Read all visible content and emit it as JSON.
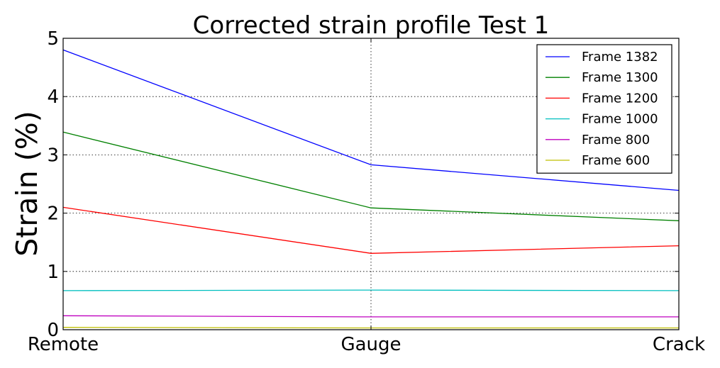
{
  "chart_data": {
    "type": "line",
    "title": "Corrected strain profile Test 1",
    "xlabel": "",
    "ylabel": "Strain (%)",
    "categories": [
      "Remote",
      "Gauge",
      "Crack"
    ],
    "ylim": [
      0,
      5
    ],
    "yticks": [
      "0",
      "1",
      "2",
      "3",
      "4",
      "5"
    ],
    "grid": true,
    "legend_position": "top-right",
    "series": [
      {
        "name": "Frame 1382",
        "color": "#0000ff",
        "values": [
          4.8,
          2.83,
          2.39
        ]
      },
      {
        "name": "Frame 1300",
        "color": "#008000",
        "values": [
          3.39,
          2.09,
          1.87
        ]
      },
      {
        "name": "Frame 1200",
        "color": "#ff0000",
        "values": [
          2.1,
          1.31,
          1.44
        ]
      },
      {
        "name": "Frame 1000",
        "color": "#00bfbf",
        "values": [
          0.67,
          0.68,
          0.67
        ]
      },
      {
        "name": "Frame 800",
        "color": "#bf00bf",
        "values": [
          0.24,
          0.22,
          0.22
        ]
      },
      {
        "name": "Frame 600",
        "color": "#bfbf00",
        "values": [
          0.04,
          0.03,
          0.03
        ]
      }
    ]
  }
}
